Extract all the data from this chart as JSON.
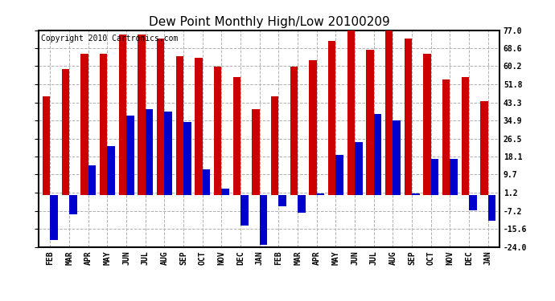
{
  "title": "Dew Point Monthly High/Low 20100209",
  "copyright": "Copyright 2010 Cartronics.com",
  "months": [
    "FEB",
    "MAR",
    "APR",
    "MAY",
    "JUN",
    "JUL",
    "AUG",
    "SEP",
    "OCT",
    "NOV",
    "DEC",
    "JAN",
    "FEB",
    "MAR",
    "APR",
    "MAY",
    "JUN",
    "JUL",
    "AUG",
    "SEP",
    "OCT",
    "NOV",
    "DEC",
    "JAN"
  ],
  "highs": [
    46,
    59,
    66,
    66,
    75,
    75,
    73,
    65,
    64,
    60,
    55,
    40,
    46,
    60,
    63,
    72,
    77,
    68,
    77,
    73,
    66,
    54,
    55,
    44
  ],
  "lows": [
    -21,
    -9,
    14,
    23,
    37,
    40,
    39,
    34,
    12,
    3,
    -14,
    -23,
    -5,
    -8,
    1,
    19,
    25,
    38,
    35,
    1,
    17,
    17,
    -7,
    -12
  ],
  "high_color": "#cc0000",
  "low_color": "#0000cc",
  "background_color": "#ffffff",
  "grid_color": "#b0b0b0",
  "yticks": [
    -24.0,
    -15.6,
    -7.2,
    1.2,
    9.7,
    18.1,
    26.5,
    34.9,
    43.3,
    51.8,
    60.2,
    68.6,
    77.0
  ],
  "ylim": [
    -24.0,
    77.0
  ],
  "title_fontsize": 11,
  "copyright_fontsize": 7,
  "tick_fontsize": 7,
  "bar_width": 0.4
}
